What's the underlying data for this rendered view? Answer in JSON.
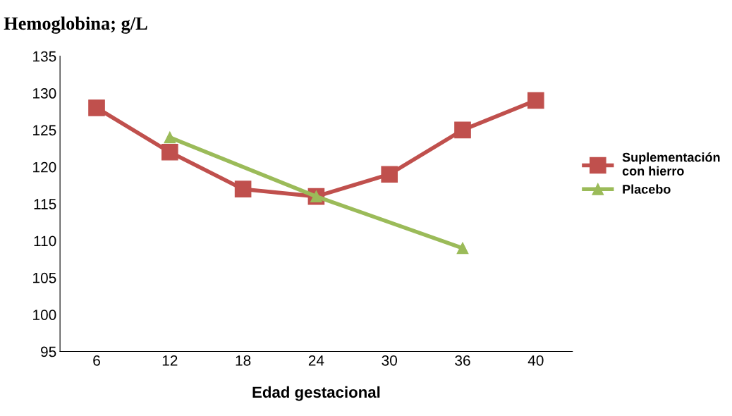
{
  "chart_data": {
    "type": "line",
    "title": "Hemoglobina; g/L",
    "xlabel": "Edad gestacional",
    "categories": [
      "6",
      "12",
      "18",
      "24",
      "30",
      "36",
      "40"
    ],
    "series": [
      {
        "name": "Suplementación\ncon hierro",
        "color": "#c0504d",
        "marker": "square",
        "values": [
          128,
          122,
          117,
          116,
          119,
          125,
          129
        ]
      },
      {
        "name": "Placebo",
        "color": "#9bbb59",
        "marker": "triangle",
        "values": [
          null,
          124,
          null,
          116,
          null,
          109,
          null
        ]
      }
    ],
    "ylim": [
      95,
      135
    ],
    "yticks": [
      95,
      100,
      105,
      110,
      115,
      120,
      125,
      130,
      135
    ],
    "grid": false,
    "legend": "right"
  }
}
